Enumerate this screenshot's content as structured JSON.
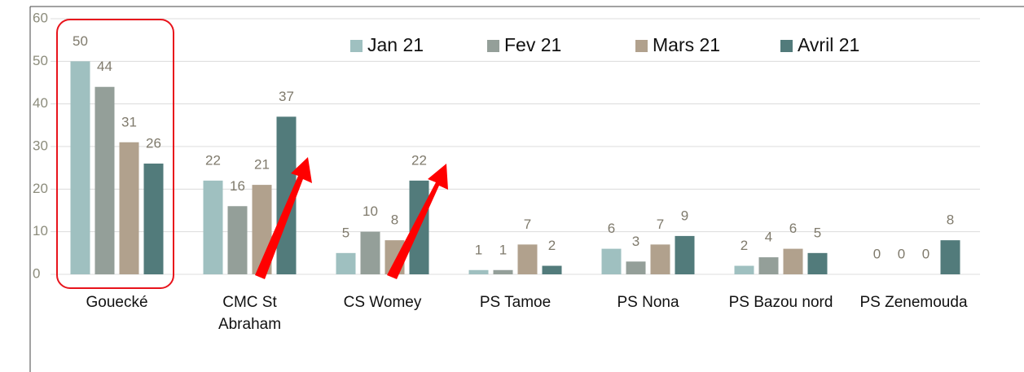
{
  "chart_data": {
    "type": "bar",
    "categories": [
      "Gouecké",
      "CMC St\nAbraham",
      "CS Womey",
      "PS Tamoe",
      "PS Nona",
      "PS Bazou nord",
      "PS Zenemouda"
    ],
    "series": [
      {
        "name": "Jan 21",
        "color": "#9fc0c0",
        "values": [
          50,
          22,
          5,
          1,
          6,
          2,
          0
        ]
      },
      {
        "name": "Fev 21",
        "color": "#949f99",
        "values": [
          44,
          16,
          10,
          1,
          3,
          4,
          0
        ]
      },
      {
        "name": "Mars 21",
        "color": "#b1a18d",
        "values": [
          31,
          21,
          8,
          7,
          7,
          6,
          0
        ]
      },
      {
        "name": "Avril 21",
        "color": "#527b7b",
        "values": [
          26,
          37,
          22,
          2,
          9,
          5,
          8
        ]
      }
    ],
    "ylim": [
      0,
      60
    ],
    "yticks": [
      0,
      10,
      20,
      30,
      40,
      50,
      60
    ],
    "grid": true,
    "legend": "top"
  }
}
